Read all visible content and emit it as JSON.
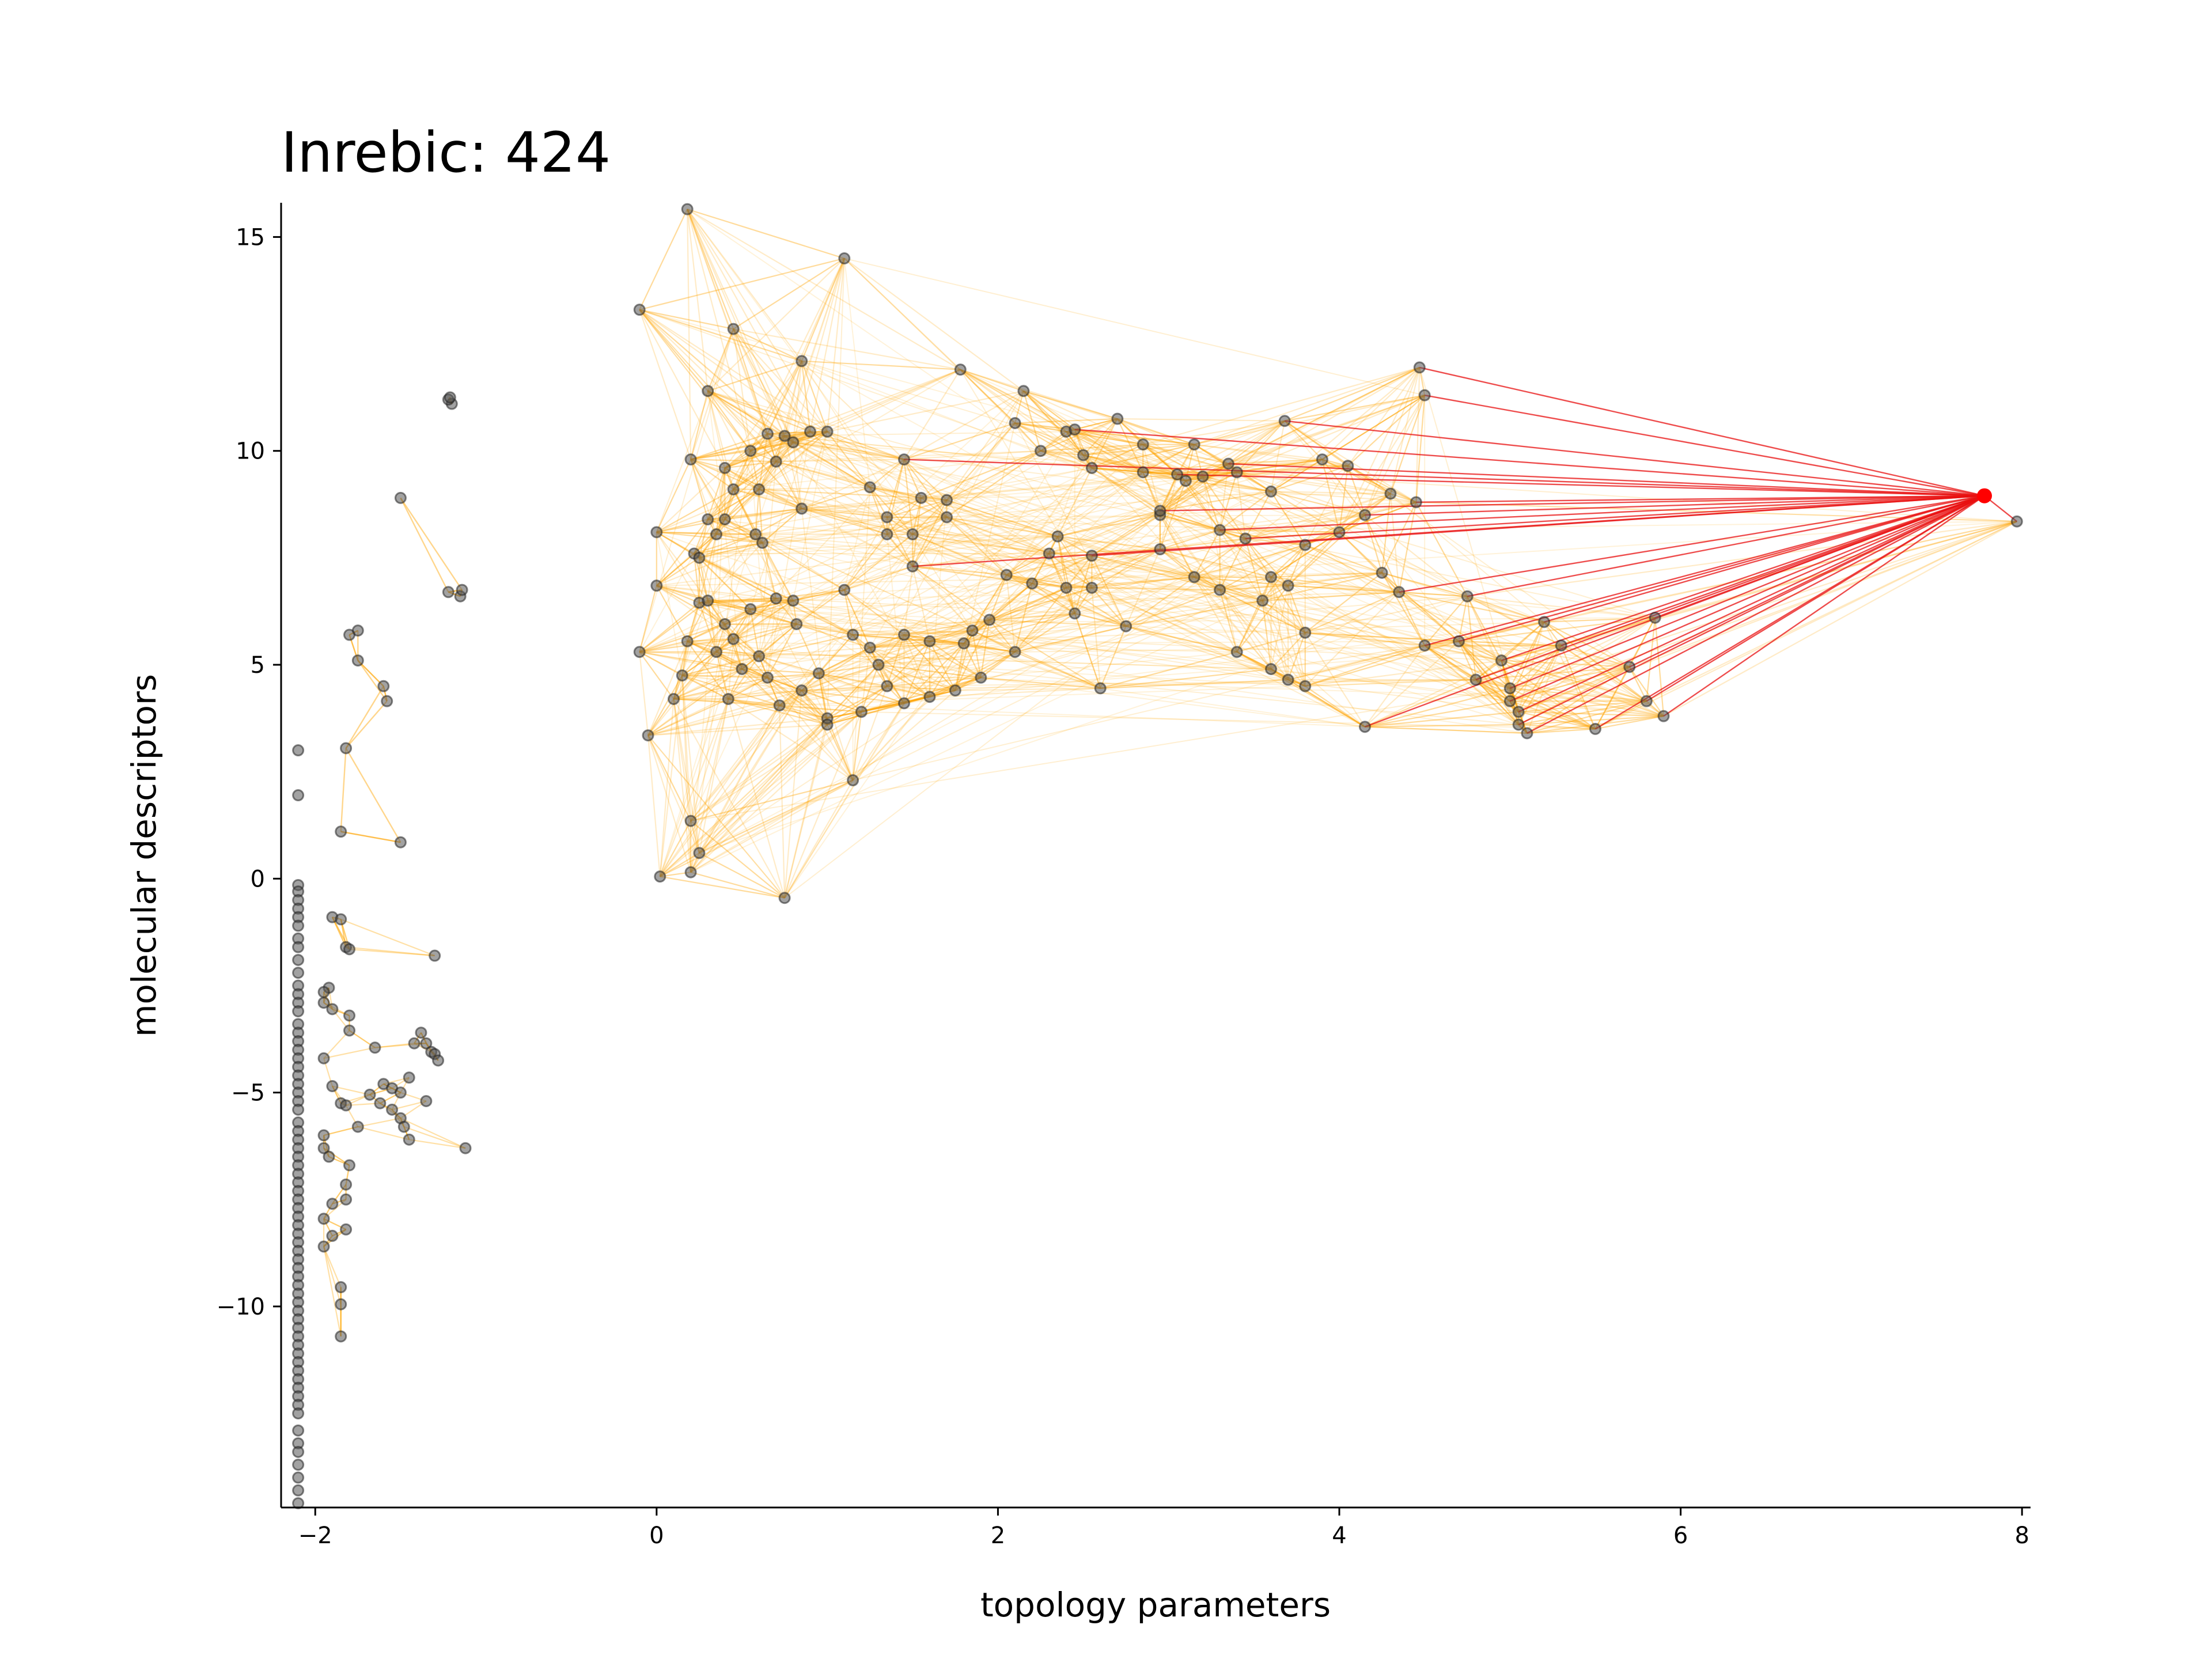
{
  "chart_data": {
    "type": "scatter",
    "title": "Inrebic: 424",
    "xlabel": "topology parameters",
    "ylabel": "molecular descriptors",
    "xlim": [
      -2.2,
      8.05
    ],
    "ylim": [
      -14.7,
      15.8
    ],
    "xticks": [
      -2,
      0,
      2,
      4,
      6,
      8
    ],
    "yticks": [
      -10,
      -5,
      0,
      5,
      10,
      15
    ],
    "xtick_labels": [
      "−2",
      "0",
      "2",
      "4",
      "6",
      "8"
    ],
    "ytick_labels": [
      "−10",
      "−5",
      "0",
      "5",
      "10",
      "15"
    ],
    "grid": false,
    "colors": {
      "points": "#000000",
      "edges": "#ffa500",
      "highlight_edges": "#e81010",
      "highlight_point": "#ff0000"
    },
    "highlight": {
      "x": 7.78,
      "y": 8.95
    },
    "highlight_neighbors": [
      [
        4.47,
        11.95
      ],
      [
        4.5,
        11.3
      ],
      [
        3.68,
        10.7
      ],
      [
        2.45,
        10.5
      ],
      [
        3.35,
        9.7
      ],
      [
        3.05,
        9.45
      ],
      [
        1.45,
        9.8
      ],
      [
        2.95,
        8.6
      ],
      [
        4.45,
        8.8
      ],
      [
        4.15,
        8.5
      ],
      [
        3.3,
        8.15
      ],
      [
        3.45,
        7.95
      ],
      [
        2.55,
        7.55
      ],
      [
        1.5,
        7.3
      ],
      [
        4.35,
        6.7
      ],
      [
        4.75,
        6.6
      ],
      [
        5.2,
        6.0
      ],
      [
        5.85,
        6.1
      ],
      [
        4.7,
        5.55
      ],
      [
        4.5,
        5.45
      ],
      [
        5.3,
        5.45
      ],
      [
        4.95,
        5.1
      ],
      [
        5.7,
        4.95
      ],
      [
        4.8,
        4.65
      ],
      [
        5.0,
        4.45
      ],
      [
        5.0,
        4.15
      ],
      [
        5.8,
        4.15
      ],
      [
        5.05,
        3.9
      ],
      [
        5.05,
        3.6
      ],
      [
        5.1,
        3.4
      ],
      [
        5.5,
        3.5
      ],
      [
        5.9,
        3.8
      ],
      [
        4.15,
        3.55
      ],
      [
        7.97,
        8.35
      ]
    ],
    "main_cluster": [
      [
        -0.1,
        13.3
      ],
      [
        0.45,
        12.85
      ],
      [
        0.85,
        12.1
      ],
      [
        1.1,
        14.5
      ],
      [
        0.18,
        15.65
      ],
      [
        1.78,
        11.9
      ],
      [
        2.15,
        11.4
      ],
      [
        0.3,
        11.4
      ],
      [
        0.45,
        9.1
      ],
      [
        0.6,
        9.1
      ],
      [
        0.2,
        9.8
      ],
      [
        0.55,
        10.0
      ],
      [
        0.65,
        10.4
      ],
      [
        0.75,
        10.35
      ],
      [
        0.9,
        10.45
      ],
      [
        1.0,
        10.45
      ],
      [
        0.8,
        10.2
      ],
      [
        0.7,
        9.75
      ],
      [
        0.4,
        9.6
      ],
      [
        2.1,
        10.65
      ],
      [
        2.25,
        10.0
      ],
      [
        2.4,
        10.45
      ],
      [
        2.7,
        10.75
      ],
      [
        2.85,
        10.15
      ],
      [
        3.15,
        10.15
      ],
      [
        2.5,
        9.9
      ],
      [
        2.55,
        9.6
      ],
      [
        2.85,
        9.5
      ],
      [
        3.2,
        9.4
      ],
      [
        3.4,
        9.5
      ],
      [
        3.6,
        9.05
      ],
      [
        3.9,
        9.8
      ],
      [
        4.05,
        9.65
      ],
      [
        1.25,
        9.15
      ],
      [
        1.55,
        8.9
      ],
      [
        1.7,
        8.85
      ],
      [
        1.7,
        8.45
      ],
      [
        1.35,
        8.45
      ],
      [
        1.5,
        8.05
      ],
      [
        1.35,
        8.05
      ],
      [
        0.85,
        8.65
      ],
      [
        0.3,
        8.4
      ],
      [
        0.4,
        8.4
      ],
      [
        0.35,
        8.05
      ],
      [
        0.22,
        7.6
      ],
      [
        0.25,
        7.5
      ],
      [
        0.58,
        8.05
      ],
      [
        0.62,
        7.85
      ],
      [
        0.0,
        8.1
      ],
      [
        0.0,
        6.85
      ],
      [
        -0.1,
        5.3
      ],
      [
        -0.05,
        3.35
      ],
      [
        0.1,
        4.2
      ],
      [
        0.15,
        4.75
      ],
      [
        0.18,
        5.55
      ],
      [
        0.25,
        6.45
      ],
      [
        0.3,
        6.5
      ],
      [
        0.35,
        5.3
      ],
      [
        0.4,
        5.95
      ],
      [
        0.42,
        4.2
      ],
      [
        0.45,
        5.6
      ],
      [
        0.5,
        4.9
      ],
      [
        0.55,
        6.3
      ],
      [
        0.6,
        5.2
      ],
      [
        0.65,
        4.7
      ],
      [
        0.7,
        6.55
      ],
      [
        0.72,
        4.05
      ],
      [
        0.8,
        6.5
      ],
      [
        0.82,
        5.95
      ],
      [
        0.85,
        4.4
      ],
      [
        0.95,
        4.8
      ],
      [
        1.0,
        3.75
      ],
      [
        1.0,
        3.6
      ],
      [
        1.1,
        6.75
      ],
      [
        1.15,
        5.7
      ],
      [
        1.2,
        3.9
      ],
      [
        1.15,
        2.3
      ],
      [
        1.25,
        5.4
      ],
      [
        1.3,
        5.0
      ],
      [
        1.35,
        4.5
      ],
      [
        1.45,
        5.7
      ],
      [
        1.45,
        4.1
      ],
      [
        1.6,
        4.25
      ],
      [
        1.6,
        5.55
      ],
      [
        1.75,
        4.4
      ],
      [
        1.85,
        5.8
      ],
      [
        1.95,
        6.05
      ],
      [
        2.05,
        7.1
      ],
      [
        2.2,
        6.9
      ],
      [
        2.35,
        8.0
      ],
      [
        2.4,
        6.8
      ],
      [
        2.45,
        6.2
      ],
      [
        2.55,
        6.8
      ],
      [
        2.6,
        4.45
      ],
      [
        2.75,
        5.9
      ],
      [
        2.95,
        7.7
      ],
      [
        3.15,
        7.05
      ],
      [
        3.3,
        6.75
      ],
      [
        3.55,
        6.5
      ],
      [
        3.6,
        7.05
      ],
      [
        3.7,
        6.85
      ],
      [
        3.4,
        5.3
      ],
      [
        3.7,
        4.65
      ],
      [
        3.8,
        4.5
      ],
      [
        3.8,
        5.75
      ],
      [
        3.6,
        4.9
      ],
      [
        0.2,
        1.35
      ],
      [
        0.25,
        0.6
      ],
      [
        0.2,
        0.15
      ],
      [
        0.02,
        0.05
      ],
      [
        0.75,
        -0.45
      ],
      [
        1.8,
        5.5
      ],
      [
        1.9,
        4.7
      ],
      [
        2.1,
        5.3
      ],
      [
        2.3,
        7.6
      ],
      [
        2.95,
        8.5
      ],
      [
        3.1,
        9.3
      ],
      [
        3.8,
        7.8
      ],
      [
        4.0,
        8.1
      ],
      [
        4.25,
        7.15
      ],
      [
        4.3,
        9.0
      ]
    ],
    "left_top_cluster": [
      [
        -1.2,
        11.1
      ],
      [
        -1.22,
        11.2
      ],
      [
        -1.21,
        11.25
      ],
      [
        -1.5,
        8.9
      ],
      [
        -1.22,
        6.7
      ],
      [
        -1.15,
        6.6
      ],
      [
        -1.14,
        6.75
      ],
      [
        -1.6,
        4.5
      ],
      [
        -1.58,
        4.15
      ],
      [
        -1.75,
        5.8
      ],
      [
        -1.8,
        5.7
      ],
      [
        -1.75,
        5.1
      ],
      [
        -1.82,
        3.05
      ],
      [
        -1.85,
        1.1
      ],
      [
        -1.5,
        0.85
      ]
    ],
    "left_low_cluster": [
      [
        -1.9,
        -0.9
      ],
      [
        -1.85,
        -0.95
      ],
      [
        -1.82,
        -1.6
      ],
      [
        -1.8,
        -1.65
      ],
      [
        -1.92,
        -2.55
      ],
      [
        -1.95,
        -2.65
      ],
      [
        -1.95,
        -2.9
      ],
      [
        -1.9,
        -3.05
      ],
      [
        -1.8,
        -3.2
      ],
      [
        -1.8,
        -3.55
      ],
      [
        -1.95,
        -4.2
      ],
      [
        -1.9,
        -4.85
      ],
      [
        -1.85,
        -5.25
      ],
      [
        -1.82,
        -5.3
      ],
      [
        -1.75,
        -5.8
      ],
      [
        -1.95,
        -6.0
      ],
      [
        -1.95,
        -6.3
      ],
      [
        -1.92,
        -6.5
      ],
      [
        -1.8,
        -6.7
      ],
      [
        -1.82,
        -7.15
      ],
      [
        -1.82,
        -7.5
      ],
      [
        -1.9,
        -7.6
      ],
      [
        -1.95,
        -7.95
      ],
      [
        -1.82,
        -8.2
      ],
      [
        -1.9,
        -8.35
      ],
      [
        -1.95,
        -8.6
      ],
      [
        -1.85,
        -9.55
      ],
      [
        -1.85,
        -9.95
      ],
      [
        -1.85,
        -10.7
      ],
      [
        -1.3,
        -1.8
      ],
      [
        -1.62,
        -5.25
      ],
      [
        -1.65,
        -3.95
      ],
      [
        -1.6,
        -4.8
      ],
      [
        -1.55,
        -4.9
      ],
      [
        -1.5,
        -5.0
      ],
      [
        -1.45,
        -4.65
      ],
      [
        -1.5,
        -5.6
      ],
      [
        -1.48,
        -5.8
      ],
      [
        -1.45,
        -6.1
      ],
      [
        -1.42,
        -3.85
      ],
      [
        -1.38,
        -3.6
      ],
      [
        -1.35,
        -3.85
      ],
      [
        -1.32,
        -4.05
      ],
      [
        -1.3,
        -4.1
      ],
      [
        -1.28,
        -4.25
      ],
      [
        -1.35,
        -5.2
      ],
      [
        -1.55,
        -5.4
      ],
      [
        -1.12,
        -6.3
      ],
      [
        -1.68,
        -5.05
      ]
    ],
    "left_column_x": -2.1,
    "left_column_y": [
      3.0,
      1.95,
      -0.15,
      -0.3,
      -0.5,
      -0.7,
      -0.9,
      -1.1,
      -1.4,
      -1.6,
      -1.9,
      -2.2,
      -2.5,
      -2.7,
      -2.9,
      -3.1,
      -3.4,
      -3.6,
      -3.8,
      -4.0,
      -4.2,
      -4.4,
      -4.6,
      -4.8,
      -5.0,
      -5.2,
      -5.4,
      -5.7,
      -5.9,
      -6.1,
      -6.3,
      -6.5,
      -6.7,
      -6.9,
      -7.1,
      -7.3,
      -7.5,
      -7.7,
      -7.9,
      -8.1,
      -8.3,
      -8.5,
      -8.7,
      -8.9,
      -9.1,
      -9.3,
      -9.5,
      -9.7,
      -9.9,
      -10.1,
      -10.3,
      -10.5,
      -10.7,
      -10.9,
      -11.1,
      -11.3,
      -11.5,
      -11.7,
      -11.9,
      -12.1,
      -12.3,
      -12.5,
      -12.9,
      -13.2,
      -13.4,
      -13.7,
      -14.0,
      -14.3,
      -14.6
    ]
  }
}
